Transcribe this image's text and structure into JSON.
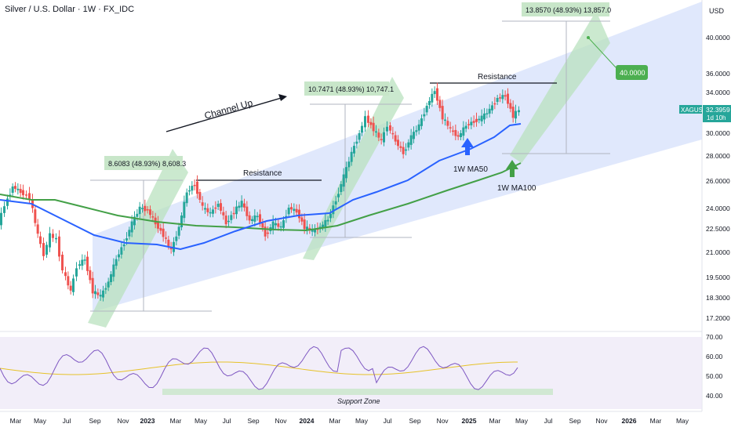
{
  "header": {
    "title": "Silver / U.S. Dollar · 1W · FX_IDC"
  },
  "price_axis": {
    "unit": "USD"
  },
  "chart_data": {
    "type": "candlestick",
    "symbol": "XAGUSD",
    "last_price": "32.3959",
    "countdown": "1d 10h",
    "price_scale": "log",
    "price_ticks": [
      "40.0000",
      "36.0000",
      "34.0000",
      "30.0000",
      "28.0000",
      "26.0000",
      "24.0000",
      "22.5000",
      "21.0000",
      "19.5000",
      "18.3000",
      "17.2000"
    ],
    "rsi_ticks": [
      "70.00",
      "60.00",
      "50.00",
      "40.00"
    ],
    "time_ticks": [
      "Mar",
      "May",
      "Jul",
      "Sep",
      "Nov",
      "2023",
      "Mar",
      "May",
      "Jul",
      "Sep",
      "Nov",
      "2024",
      "Mar",
      "May",
      "Jul",
      "Sep",
      "Nov",
      "2025",
      "Mar",
      "May",
      "Jul",
      "Sep",
      "Nov",
      "2026",
      "Mar",
      "May"
    ],
    "colors": {
      "up": "#26a69a",
      "down": "#ef5350",
      "ma50": "#2962ff",
      "ma100": "#43a047",
      "rsi": "#7e57c2",
      "rsi_ma": "#e6c229",
      "channel": "#d6e0fb",
      "leg": "#c8e6c9",
      "target": "#4caf50"
    },
    "annotations": {
      "channel": "Channel Up",
      "resistance_1": "Resistance",
      "resistance_2": "Resistance",
      "ma50": "1W MA50",
      "ma100": "1W MA100",
      "support": "Support Zone",
      "target": "40.0000",
      "leg1": "8.6083 (48.93%) 8,608.3",
      "leg2": "10.7471 (48.93%) 10,747.1",
      "leg3": "13.8570 (48.93%) 13,857.0"
    }
  }
}
